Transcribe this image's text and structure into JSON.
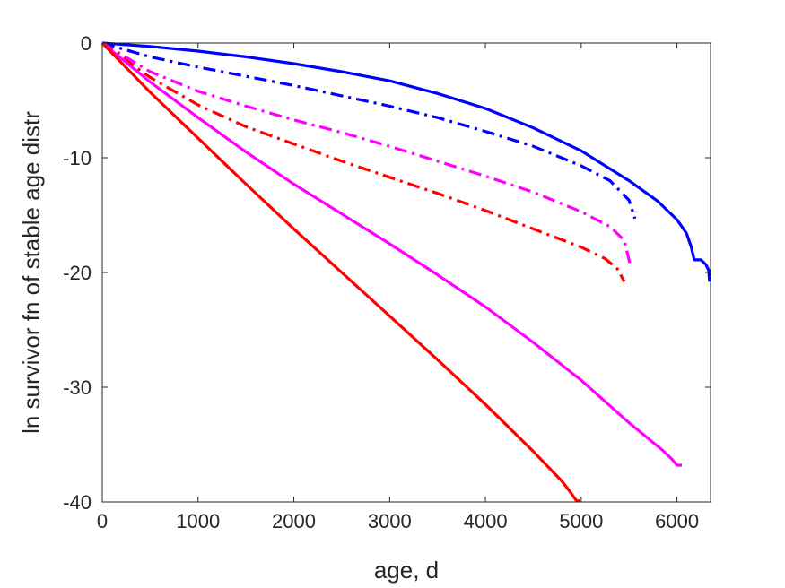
{
  "chart_data": {
    "type": "line",
    "title": "",
    "xlabel": "age, d",
    "ylabel": "ln survivor fn of stable age distr",
    "xlim": [
      0,
      6350
    ],
    "ylim": [
      -40,
      0
    ],
    "xticks": [
      "0",
      "1000",
      "2000",
      "3000",
      "4000",
      "5000",
      "6000"
    ],
    "yticks": [
      "0",
      "-10",
      "-20",
      "-30",
      "-40"
    ],
    "grid": false,
    "legend": "none",
    "series": [
      {
        "color": "#0000ff",
        "style": "solid",
        "x": [
          0,
          500,
          1000,
          1500,
          2000,
          2500,
          3000,
          3500,
          4000,
          4500,
          5000,
          5500,
          5800,
          6000,
          6100,
          6150,
          6180,
          6250,
          6300,
          6330,
          6340
        ],
        "y": [
          0,
          -0.3,
          -0.7,
          -1.2,
          -1.8,
          -2.5,
          -3.3,
          -4.4,
          -5.7,
          -7.4,
          -9.4,
          -12.0,
          -13.8,
          -15.4,
          -16.6,
          -17.8,
          -18.9,
          -18.9,
          -19.3,
          -19.8,
          -20.8
        ]
      },
      {
        "color": "#0000ff",
        "style": "dashdot",
        "x": [
          0,
          500,
          1000,
          1500,
          2000,
          2500,
          3000,
          3500,
          4000,
          4500,
          5000,
          5300,
          5500,
          5560
        ],
        "y": [
          0,
          -1.2,
          -2.1,
          -2.9,
          -3.7,
          -4.6,
          -5.5,
          -6.5,
          -7.7,
          -9.0,
          -10.7,
          -12.0,
          -13.7,
          -15.3
        ]
      },
      {
        "color": "#ff00ff",
        "style": "dashdot",
        "x": [
          0,
          500,
          1000,
          1500,
          2000,
          2500,
          3000,
          3500,
          4000,
          4500,
          5000,
          5300,
          5450,
          5510
        ],
        "y": [
          0,
          -2.5,
          -4.2,
          -5.5,
          -6.7,
          -7.8,
          -9.0,
          -10.3,
          -11.6,
          -13.0,
          -14.7,
          -16.0,
          -17.2,
          -19.3
        ]
      },
      {
        "color": "#ff0000",
        "style": "dashdot",
        "x": [
          0,
          500,
          1000,
          1500,
          2000,
          2500,
          3000,
          3500,
          4000,
          4500,
          5000,
          5250,
          5380,
          5450
        ],
        "y": [
          0,
          -3.0,
          -5.4,
          -7.3,
          -8.8,
          -10.3,
          -11.7,
          -13.1,
          -14.6,
          -16.2,
          -17.8,
          -18.8,
          -19.7,
          -20.8
        ]
      },
      {
        "color": "#ff00ff",
        "style": "solid",
        "x": [
          0,
          500,
          1000,
          1500,
          2000,
          2500,
          3000,
          3500,
          4000,
          4500,
          5000,
          5500,
          5850,
          5950,
          6000,
          6050
        ],
        "y": [
          0,
          -3.4,
          -6.5,
          -9.5,
          -12.3,
          -14.9,
          -17.5,
          -20.2,
          -23.0,
          -26.1,
          -29.4,
          -33.1,
          -35.5,
          -36.3,
          -36.8,
          -36.8
        ]
      },
      {
        "color": "#ff0000",
        "style": "solid",
        "x": [
          0,
          500,
          1000,
          1500,
          2000,
          2500,
          3000,
          3500,
          4000,
          4500,
          4800,
          4900,
          4950,
          4990
        ],
        "y": [
          0,
          -4.3,
          -8.3,
          -12.3,
          -16.2,
          -20.0,
          -23.8,
          -27.6,
          -31.5,
          -35.6,
          -38.2,
          -39.3,
          -39.9,
          -39.9
        ]
      }
    ]
  }
}
